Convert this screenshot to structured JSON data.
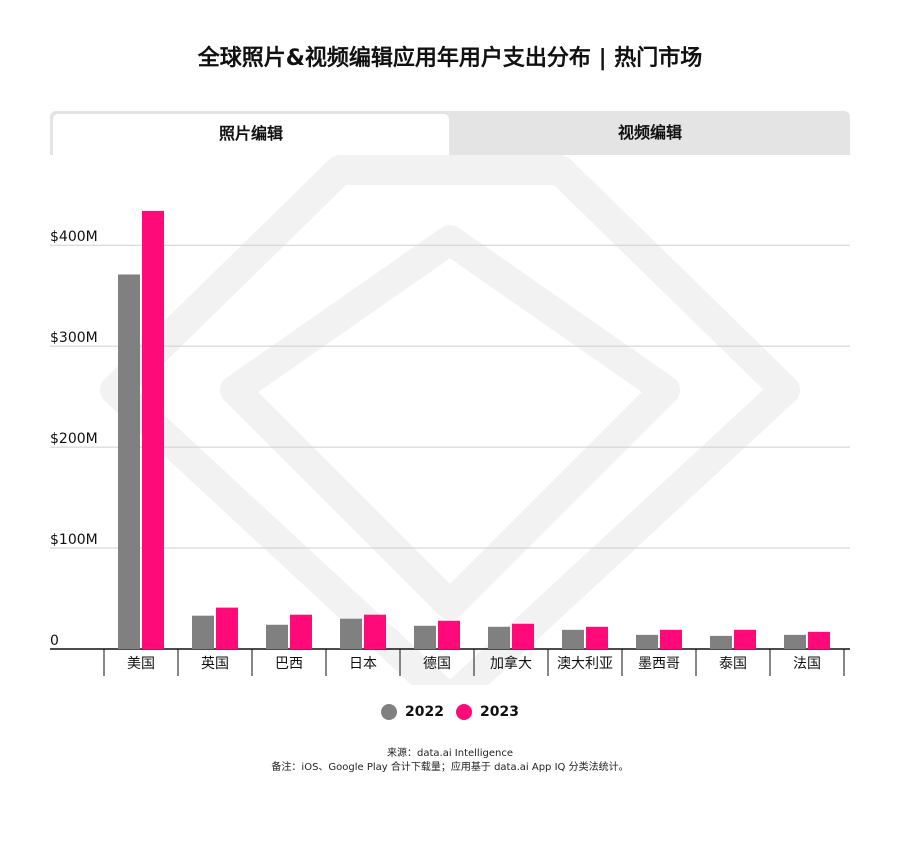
{
  "title": "全球照片&视频编辑应用年用户支出分布 | 热门市场",
  "tabs": [
    {
      "label": "照片编辑",
      "active": true
    },
    {
      "label": "视频编辑",
      "active": false
    }
  ],
  "colors": {
    "series_2022": "#808080",
    "series_2023": "#ff0a78"
  },
  "chart_data": {
    "type": "bar",
    "title": "全球照片&视频编辑应用年用户支出分布 | 热门市场",
    "xlabel": "",
    "ylabel": "",
    "ylim": [
      0,
      435
    ],
    "yticks": [
      {
        "value": 0,
        "label": "0"
      },
      {
        "value": 100,
        "label": "$100M"
      },
      {
        "value": 200,
        "label": "$200M"
      },
      {
        "value": 300,
        "label": "$300M"
      },
      {
        "value": 400,
        "label": "$400M"
      }
    ],
    "grid": true,
    "legend": "bottom",
    "categories": [
      "美国",
      "英国",
      "巴西",
      "日本",
      "德国",
      "加拿大",
      "澳大利亚",
      "墨西哥",
      "泰国",
      "法国"
    ],
    "series": [
      {
        "name": "2022",
        "values": [
          371,
          33,
          24,
          30,
          23,
          22,
          19,
          14,
          13,
          14
        ]
      },
      {
        "name": "2023",
        "values": [
          434,
          41,
          34,
          34,
          28,
          25,
          22,
          19,
          19,
          17
        ]
      }
    ]
  },
  "source_line": "来源：data.ai Intelligence",
  "note_line": "备注：iOS、Google Play 合计下载量；应用基于 data.ai App IQ 分类法统计。"
}
